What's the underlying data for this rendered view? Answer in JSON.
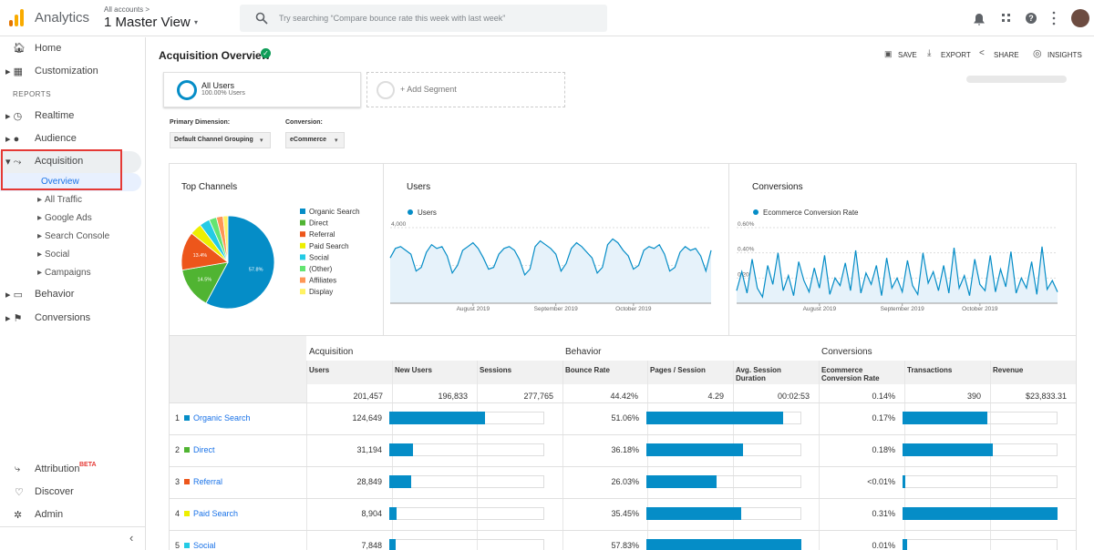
{
  "header": {
    "breadcrumb": "All accounts >",
    "product": "Analytics",
    "view": "1 Master View",
    "search_placeholder": "Try searching “Compare bounce rate this week with last week”"
  },
  "sidebar": {
    "items": [
      "Home",
      "Customization"
    ],
    "section": "REPORTS",
    "reports": [
      "Realtime",
      "Audience",
      "Acquisition"
    ],
    "acquisition_children": [
      "Overview",
      "All Traffic",
      "Google Ads",
      "Search Console",
      "Social",
      "Campaigns"
    ],
    "more_reports": [
      "Behavior",
      "Conversions"
    ],
    "bottom": [
      {
        "label": "Attribution",
        "badge": "BETA"
      },
      {
        "label": "Discover"
      },
      {
        "label": "Admin"
      }
    ]
  },
  "report": {
    "title": "Acquisition Overview",
    "actions": [
      "SAVE",
      "EXPORT",
      "SHARE",
      "INSIGHTS"
    ]
  },
  "segment": {
    "name": "All Users",
    "share": "100.00% Users",
    "add": "+ Add Segment"
  },
  "dimension": {
    "label": "Primary Dimension:",
    "value": "Default Channel Grouping"
  },
  "conversion": {
    "label": "Conversion:",
    "value": "eCommerce"
  },
  "chart_data": [
    {
      "type": "pie",
      "title": "Top Channels",
      "categories": [
        "Organic Search",
        "Direct",
        "Referral",
        "Paid Search",
        "Social",
        "(Other)",
        "Affiliates",
        "Display"
      ],
      "values": [
        57.8,
        14.5,
        13.4,
        4.1,
        3.6,
        2.6,
        2.3,
        1.7
      ],
      "value_labels": [
        "57.8%",
        "14.5%",
        "13.4%",
        null,
        null,
        null,
        null,
        null
      ],
      "colors": [
        "#058dc7",
        "#50b432",
        "#ed561b",
        "#edef00",
        "#24cbe5",
        "#64e572",
        "#ff9655",
        "#fff263"
      ]
    },
    {
      "type": "line",
      "title": "Users",
      "series": [
        {
          "name": "Users",
          "color": "#058dc7",
          "values": [
            2400,
            2900,
            3000,
            2800,
            2600,
            1700,
            1900,
            2700,
            3100,
            2900,
            3000,
            2500,
            1600,
            2000,
            2800,
            3000,
            3200,
            2900,
            2400,
            1800,
            1900,
            2600,
            2900,
            3000,
            2800,
            2300,
            1500,
            1800,
            3000,
            3300,
            3100,
            2900,
            2600,
            1700,
            2100,
            2900,
            3200,
            3000,
            2700,
            2400,
            1600,
            1900,
            3100,
            3400,
            3200,
            2800,
            2500,
            1800,
            2000,
            2800,
            3000,
            2900,
            3100,
            2600,
            1700,
            1900,
            2700,
            3000,
            2800,
            2900,
            2500,
            1700,
            2800
          ]
        }
      ],
      "ylim": [
        0,
        4000
      ],
      "yticks": [
        {
          "value": 4000,
          "label": "4,000"
        },
        {
          "value": 2000,
          "label": "2,000"
        }
      ],
      "xticks": [
        {
          "value": 16,
          "label": "August 2019"
        },
        {
          "value": 32,
          "label": "September 2019"
        },
        {
          "value": 47,
          "label": "October 2019"
        }
      ],
      "grid": true
    },
    {
      "type": "line",
      "title": "Conversions",
      "series": [
        {
          "name": "Ecommerce Conversion Rate",
          "color": "#058dc7",
          "values": [
            0.1,
            0.25,
            0.08,
            0.35,
            0.12,
            0.05,
            0.3,
            0.15,
            0.4,
            0.1,
            0.22,
            0.06,
            0.33,
            0.18,
            0.09,
            0.28,
            0.12,
            0.38,
            0.07,
            0.2,
            0.14,
            0.32,
            0.1,
            0.42,
            0.08,
            0.24,
            0.15,
            0.3,
            0.06,
            0.36,
            0.12,
            0.2,
            0.09,
            0.34,
            0.14,
            0.07,
            0.4,
            0.16,
            0.25,
            0.1,
            0.3,
            0.08,
            0.44,
            0.12,
            0.22,
            0.06,
            0.35,
            0.15,
            0.1,
            0.38,
            0.09,
            0.27,
            0.13,
            0.41,
            0.08,
            0.2,
            0.12,
            0.33,
            0.07,
            0.45,
            0.11,
            0.18,
            0.09
          ]
        }
      ],
      "ylim": [
        0,
        0.6
      ],
      "yticks": [
        {
          "value": 0.6,
          "label": "0.60%"
        },
        {
          "value": 0.4,
          "label": "0.40%"
        },
        {
          "value": 0.2,
          "label": "0.20%"
        }
      ],
      "xticks": [
        {
          "value": 16,
          "label": "August 2019"
        },
        {
          "value": 32,
          "label": "September 2019"
        },
        {
          "value": 47,
          "label": "October 2019"
        }
      ],
      "grid": true
    }
  ],
  "table": {
    "groups": [
      "Acquisition",
      "Behavior",
      "Conversions"
    ],
    "columns": [
      "Users",
      "New Users",
      "Sessions",
      "Bounce Rate",
      "Pages / Session",
      "Avg. Session Duration",
      "Ecommerce Conversion Rate",
      "Transactions",
      "Revenue"
    ],
    "totals": [
      {
        "value": 201457,
        "label": "201,457"
      },
      "196,833",
      "277,765",
      "44.42%",
      "4.29",
      "00:02:53",
      "0.14%",
      "390",
      "$23,833.31"
    ],
    "rows": [
      {
        "rank": 1,
        "channel": "Organic Search",
        "users": {
          "value": 124649,
          "label": "124,649"
        },
        "bounce_rate": {
          "value": 51.06,
          "label": "51.06%"
        },
        "conversion_rate": {
          "value": 0.17,
          "label": "0.17%"
        }
      },
      {
        "rank": 2,
        "channel": "Direct",
        "users": {
          "value": 31194,
          "label": "31,194"
        },
        "bounce_rate": {
          "value": 36.18,
          "label": "36.18%"
        },
        "conversion_rate": {
          "value": 0.18,
          "label": "0.18%"
        }
      },
      {
        "rank": 3,
        "channel": "Referral",
        "users": {
          "value": 28849,
          "label": "28,849"
        },
        "bounce_rate": {
          "value": 26.03,
          "label": "26.03%"
        },
        "conversion_rate": {
          "value": 0.005,
          "label": "<0.01%"
        }
      },
      {
        "rank": 4,
        "channel": "Paid Search",
        "users": {
          "value": 8904,
          "label": "8,904"
        },
        "bounce_rate": {
          "value": 35.45,
          "label": "35.45%"
        },
        "conversion_rate": {
          "value": 0.31,
          "label": "0.31%"
        }
      },
      {
        "rank": 5,
        "channel": "Social",
        "users": {
          "value": 7848,
          "label": "7,848"
        },
        "bounce_rate": {
          "value": 57.83,
          "label": "57.83%"
        },
        "conversion_rate": {
          "value": 0.01,
          "label": "0.01%"
        }
      }
    ]
  }
}
